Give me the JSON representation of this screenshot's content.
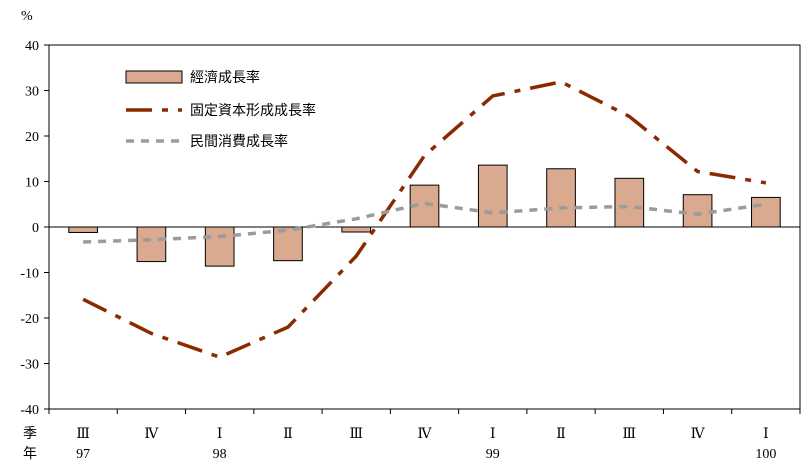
{
  "chart_data": {
    "type": "bar",
    "unit_label": "%",
    "quarter_axis_title": "季",
    "year_axis_title": "年",
    "categories": [
      "Ⅲ",
      "Ⅳ",
      "Ⅰ",
      "Ⅱ",
      "Ⅲ",
      "Ⅳ",
      "Ⅰ",
      "Ⅱ",
      "Ⅲ",
      "Ⅳ",
      "Ⅰ"
    ],
    "year_labels": [
      "97",
      "",
      "98",
      "",
      "",
      "",
      "99",
      "",
      "",
      "",
      "100"
    ],
    "ylim": [
      -40,
      40
    ],
    "yticks": [
      -40,
      -30,
      -20,
      -10,
      0,
      10,
      20,
      30,
      40
    ],
    "grid": false,
    "legend_position": "top-left",
    "series": [
      {
        "name": "經濟成長率",
        "kind": "bar",
        "color": "#d9aa90",
        "values": [
          -1.2,
          -7.6,
          -8.6,
          -7.4,
          -1.1,
          9.2,
          13.6,
          12.8,
          10.7,
          7.1,
          6.5
        ]
      },
      {
        "name": "固定資本形成成長率",
        "kind": "line",
        "dash": "long-dash",
        "color": "#8b2a00",
        "values": [
          -15.9,
          -23.4,
          -28.6,
          -22.0,
          -6.4,
          15.7,
          28.8,
          31.9,
          24.3,
          12.2,
          9.7
        ]
      },
      {
        "name": "民間消費成長率",
        "kind": "line",
        "dash": "short-dash",
        "color": "#9b9b9b",
        "values": [
          -3.3,
          -2.8,
          -2.1,
          -0.7,
          1.8,
          5.2,
          3.1,
          4.2,
          4.5,
          2.8,
          5.0
        ]
      }
    ]
  }
}
